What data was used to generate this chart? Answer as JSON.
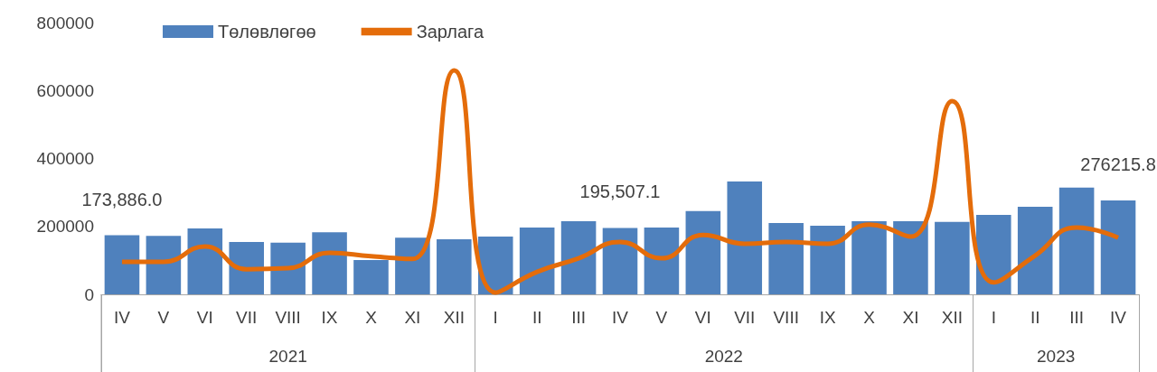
{
  "chart_data": {
    "type": "bar",
    "categories": [
      "IV",
      "V",
      "VI",
      "VII",
      "VIII",
      "IX",
      "X",
      "XI",
      "XII",
      "I",
      "II",
      "III",
      "IV",
      "V",
      "VI",
      "VII",
      "VIII",
      "IX",
      "X",
      "XI",
      "XII",
      "I",
      "II",
      "III",
      "IV"
    ],
    "series": [
      {
        "name": "Төлөвлөгөө",
        "color": "#4f81bd",
        "values": [
          173886.0,
          172000,
          194000,
          154000,
          152000,
          183000,
          101000,
          167000,
          162000,
          170000,
          197000,
          215000,
          195507.1,
          197000,
          245000,
          332000,
          210000,
          202000,
          215000,
          215000,
          213000,
          234000,
          258000,
          314000,
          276215.8
        ],
        "value_labels": [
          "173,886.0",
          null,
          null,
          null,
          null,
          null,
          null,
          null,
          null,
          null,
          null,
          null,
          "195,507.1",
          null,
          null,
          null,
          null,
          null,
          null,
          null,
          null,
          null,
          null,
          null,
          "276215.8"
        ]
      },
      {
        "name": "Зарлага",
        "type": "line",
        "color": "#e46c0a",
        "values": [
          96000,
          96000,
          141000,
          74000,
          77000,
          122000,
          112000,
          104000,
          659000,
          5000,
          66000,
          106000,
          154000,
          106000,
          175000,
          149000,
          154000,
          149000,
          205000,
          170000,
          569000,
          35000,
          114000,
          197000,
          167000
        ]
      }
    ],
    "annotations": [
      "2021",
      "2022",
      "2023"
    ],
    "ylim": [
      0,
      800000
    ],
    "yticks": [
      0,
      200000,
      400000,
      600000,
      800000
    ],
    "legend": "top left",
    "grid": false,
    "marker": "none"
  }
}
